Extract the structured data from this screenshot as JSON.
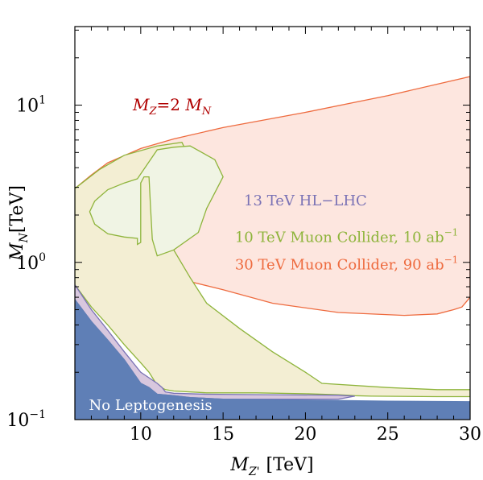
{
  "chart_data": {
    "type": "area",
    "title": "",
    "xlabel": {
      "main": "M",
      "sub": "Z'",
      "unit": "[TeV]"
    },
    "ylabel": {
      "main": "M",
      "sub": "N",
      "unit": "[TeV]"
    },
    "xlim": [
      6,
      30
    ],
    "ylim": [
      0.1,
      31.6
    ],
    "yscale": "log",
    "grid": false,
    "x_ticks": [
      10,
      15,
      20,
      25,
      30
    ],
    "y_ticks": [
      {
        "value": 0.1,
        "base": "10",
        "exp": "−1"
      },
      {
        "value": 1,
        "base": "10",
        "exp": "0"
      },
      {
        "value": 10,
        "base": "10",
        "exp": "1"
      }
    ],
    "annotations": {
      "mass_relation": {
        "lhs": "M",
        "lhs_sub": "Z",
        "mid": "=2 ",
        "rhs": "M",
        "rhs_sub": "N",
        "color": "#b00000"
      }
    },
    "series": [
      {
        "name": "No Leptogenesis",
        "fill": "#5f7fb6",
        "stroke": "#5f7fb6",
        "points": [
          [
            6,
            0.58
          ],
          [
            7,
            0.42
          ],
          [
            8,
            0.32
          ],
          [
            9,
            0.24
          ],
          [
            10,
            0.17
          ],
          [
            10.5,
            0.16
          ],
          [
            11,
            0.145
          ],
          [
            12,
            0.142
          ],
          [
            13,
            0.138
          ],
          [
            15,
            0.135
          ],
          [
            20,
            0.133
          ],
          [
            25,
            0.131
          ],
          [
            30,
            0.13
          ],
          [
            30,
            0.1
          ],
          [
            6,
            0.1
          ]
        ]
      },
      {
        "name": "13 TeV HL−LHC",
        "fill": "#d8c7de",
        "stroke": "#7a72b5",
        "points": [
          [
            6,
            0.72
          ],
          [
            7,
            0.5
          ],
          [
            8,
            0.37
          ],
          [
            9,
            0.27
          ],
          [
            10,
            0.2
          ],
          [
            11,
            0.17
          ],
          [
            11.3,
            0.16
          ],
          [
            11.5,
            0.15
          ],
          [
            12,
            0.147
          ],
          [
            14,
            0.145
          ],
          [
            18,
            0.144
          ],
          [
            22,
            0.143
          ],
          [
            23,
            0.141
          ],
          [
            22,
            0.135
          ],
          [
            15,
            0.135
          ],
          [
            13,
            0.138
          ],
          [
            12,
            0.142
          ],
          [
            11,
            0.145
          ],
          [
            10.5,
            0.16
          ],
          [
            10,
            0.17
          ],
          [
            9,
            0.24
          ],
          [
            8,
            0.32
          ],
          [
            7,
            0.42
          ],
          [
            6,
            0.58
          ]
        ]
      },
      {
        "name": "30 TeV Muon Collider, 90 ab",
        "sup": "−1",
        "fill": "#fde6df",
        "stroke": "#ee6b3f",
        "points": [
          [
            6,
            2.95
          ],
          [
            7,
            3.6
          ],
          [
            8,
            4.3
          ],
          [
            10,
            5.3
          ],
          [
            12,
            6.1
          ],
          [
            15,
            7.2
          ],
          [
            20,
            9.0
          ],
          [
            25,
            11.5
          ],
          [
            30,
            15.2
          ],
          [
            30,
            0.6
          ],
          [
            29.5,
            0.52
          ],
          [
            29,
            0.5
          ],
          [
            28,
            0.47
          ],
          [
            26,
            0.46
          ],
          [
            22,
            0.48
          ],
          [
            18,
            0.55
          ],
          [
            15,
            0.67
          ],
          [
            12,
            0.8
          ],
          [
            10,
            0.97
          ],
          [
            8,
            1.25
          ],
          [
            7,
            1.55
          ],
          [
            6.5,
            2.0
          ],
          [
            6.6,
            2.45
          ],
          [
            6.8,
            2.75
          ],
          [
            6.5,
            2.9
          ],
          [
            6,
            2.95
          ]
        ]
      },
      {
        "name": "10 TeV Muon Collider, 10 ab",
        "sup": "−1",
        "fill": "#f3eed3",
        "stroke": "#8eb43b",
        "points": [
          [
            6,
            1.0
          ],
          [
            6,
            0.72
          ],
          [
            7,
            0.52
          ],
          [
            8,
            0.4
          ],
          [
            9,
            0.3
          ],
          [
            10,
            0.23
          ],
          [
            10.5,
            0.2
          ],
          [
            11,
            0.165
          ],
          [
            11.5,
            0.155
          ],
          [
            12,
            0.152
          ],
          [
            14,
            0.148
          ],
          [
            17,
            0.148
          ],
          [
            20,
            0.146
          ],
          [
            22,
            0.144
          ],
          [
            23,
            0.142
          ],
          [
            24,
            0.141
          ],
          [
            28,
            0.14
          ],
          [
            30,
            0.14
          ],
          [
            30,
            0.155
          ],
          [
            28,
            0.155
          ],
          [
            25,
            0.16
          ],
          [
            21,
            0.17
          ],
          [
            20,
            0.2
          ],
          [
            18,
            0.27
          ],
          [
            16,
            0.38
          ],
          [
            14,
            0.55
          ],
          [
            13,
            0.8
          ],
          [
            12,
            1.2
          ],
          [
            11.5,
            1.7
          ],
          [
            12,
            2.4
          ],
          [
            12.3,
            3.5
          ],
          [
            12.8,
            5.0
          ],
          [
            12.5,
            5.8
          ],
          [
            11,
            5.5
          ],
          [
            9,
            4.8
          ],
          [
            7.5,
            3.9
          ],
          [
            6,
            2.95
          ]
        ]
      },
      {
        "name": "inner_green_island",
        "fill": "#f0f4e4",
        "stroke": "#8eb43b",
        "points": [
          [
            9.8,
            3.4
          ],
          [
            9,
            3.2
          ],
          [
            8,
            2.9
          ],
          [
            7.2,
            2.45
          ],
          [
            6.9,
            2.1
          ],
          [
            7.2,
            1.75
          ],
          [
            8,
            1.52
          ],
          [
            9,
            1.45
          ],
          [
            9.8,
            1.42
          ],
          [
            9.8,
            1.3
          ],
          [
            10,
            1.34
          ],
          [
            10,
            3.2
          ],
          [
            10.2,
            3.5
          ],
          [
            10.5,
            3.5
          ],
          [
            10.6,
            2.2
          ],
          [
            10.7,
            1.4
          ],
          [
            11,
            1.1
          ],
          [
            12,
            1.2
          ],
          [
            13.5,
            1.55
          ],
          [
            14,
            2.2
          ],
          [
            15,
            3.5
          ],
          [
            14.5,
            4.5
          ],
          [
            13,
            5.5
          ],
          [
            12,
            5.4
          ],
          [
            11,
            5.2
          ]
        ]
      }
    ],
    "region_labels": [
      {
        "text": "13 TeV HL−LHC",
        "sup": "",
        "color": "#7a72b5",
        "x": 20,
        "y": 2.3
      },
      {
        "text": "10 TeV Muon Collider, 10 ab",
        "sup": "−1",
        "color": "#8eb43b",
        "x": 22.5,
        "y": 1.35
      },
      {
        "text": "30 TeV Muon Collider, 90 ab",
        "sup": "−1",
        "color": "#ee6b3f",
        "x": 22.5,
        "y": 0.9
      },
      {
        "text": "No Leptogenesis",
        "sup": "",
        "color": "#ffffff",
        "x": 10.6,
        "y": 0.115
      }
    ]
  }
}
